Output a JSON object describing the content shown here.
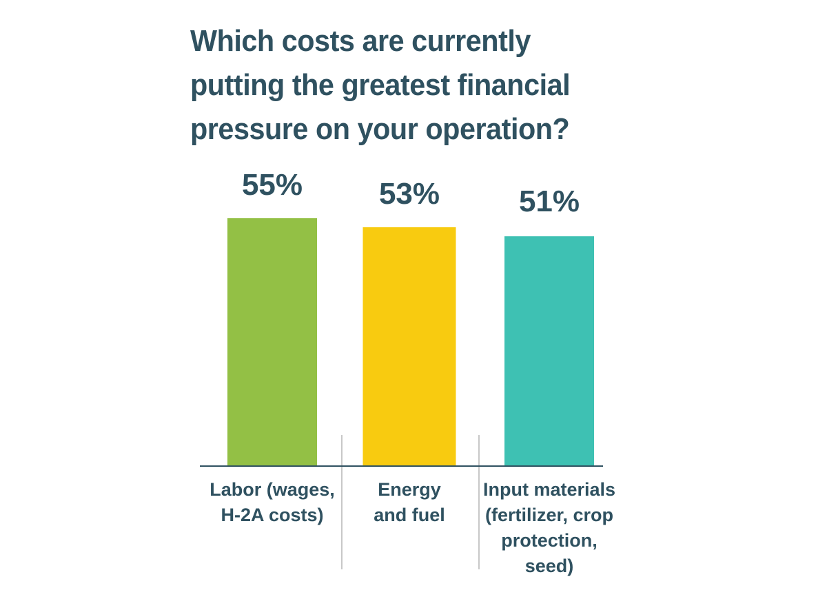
{
  "chart_data": {
    "type": "bar",
    "title": "Which costs are currently putting the greatest financial pressure on your operation?",
    "title_lines": [
      "Which costs are currently",
      "putting the greatest financial",
      "pressure on your operation?"
    ],
    "categories": [
      "Labor (wages, H-2A costs)",
      "Energy and fuel",
      "Input materials (fertilizer, crop protection, seed)"
    ],
    "category_label_lines": [
      [
        "Labor (wages,",
        "H-2A costs)"
      ],
      [
        "Energy",
        "and fuel"
      ],
      [
        "Input materials",
        "(fertilizer, crop",
        "protection,",
        "seed)"
      ]
    ],
    "values": [
      55,
      53,
      51
    ],
    "value_labels": [
      "55%",
      "53%",
      "51%"
    ],
    "unit": "%",
    "colors": [
      "#93c045",
      "#f8cb10",
      "#3ec1b3"
    ],
    "text_color": "#2f5160",
    "axis_color": "#2f5160",
    "divider_color": "#c8c8c8",
    "xlabel": "",
    "ylabel": "",
    "grid": false,
    "legend": "none"
  }
}
